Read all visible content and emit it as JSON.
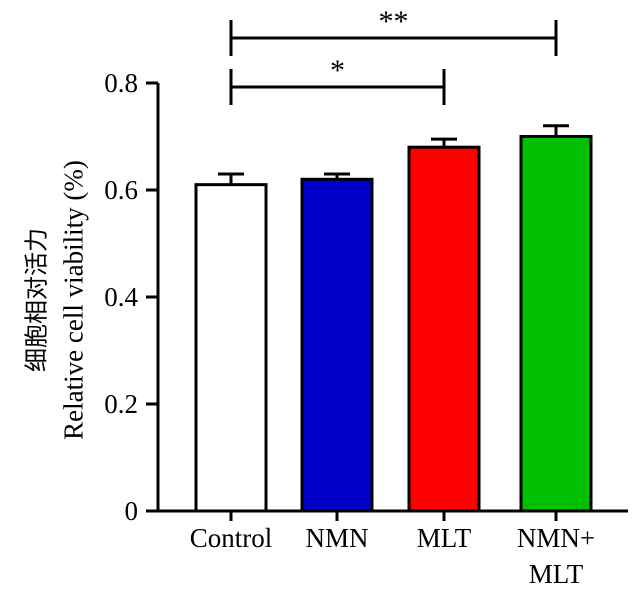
{
  "chart_data": {
    "type": "bar",
    "categories": [
      "Control",
      "NMN",
      "MLT",
      "NMN+\nMLT"
    ],
    "values": [
      0.61,
      0.62,
      0.68,
      0.7
    ],
    "errors": [
      0.02,
      0.01,
      0.015,
      0.02
    ],
    "colors": [
      "#ffffff",
      "#0000c8",
      "#ff0000",
      "#00c000"
    ],
    "ylabel_cn": "细胞相对活力",
    "ylabel": "Relative cell viability (%)",
    "xlabel": "",
    "title": "",
    "ylim": [
      0,
      0.8
    ],
    "yticks": [
      0,
      0.2,
      0.4,
      0.6,
      0.8
    ],
    "ytick_labels": [
      "0",
      "0.2",
      "0.4",
      "0.6",
      "0.8"
    ],
    "grid": false,
    "significance": [
      {
        "from": "Control",
        "to": "MLT",
        "label": "*"
      },
      {
        "from": "Control",
        "to": "NMN+\nMLT",
        "label": "**"
      }
    ]
  }
}
